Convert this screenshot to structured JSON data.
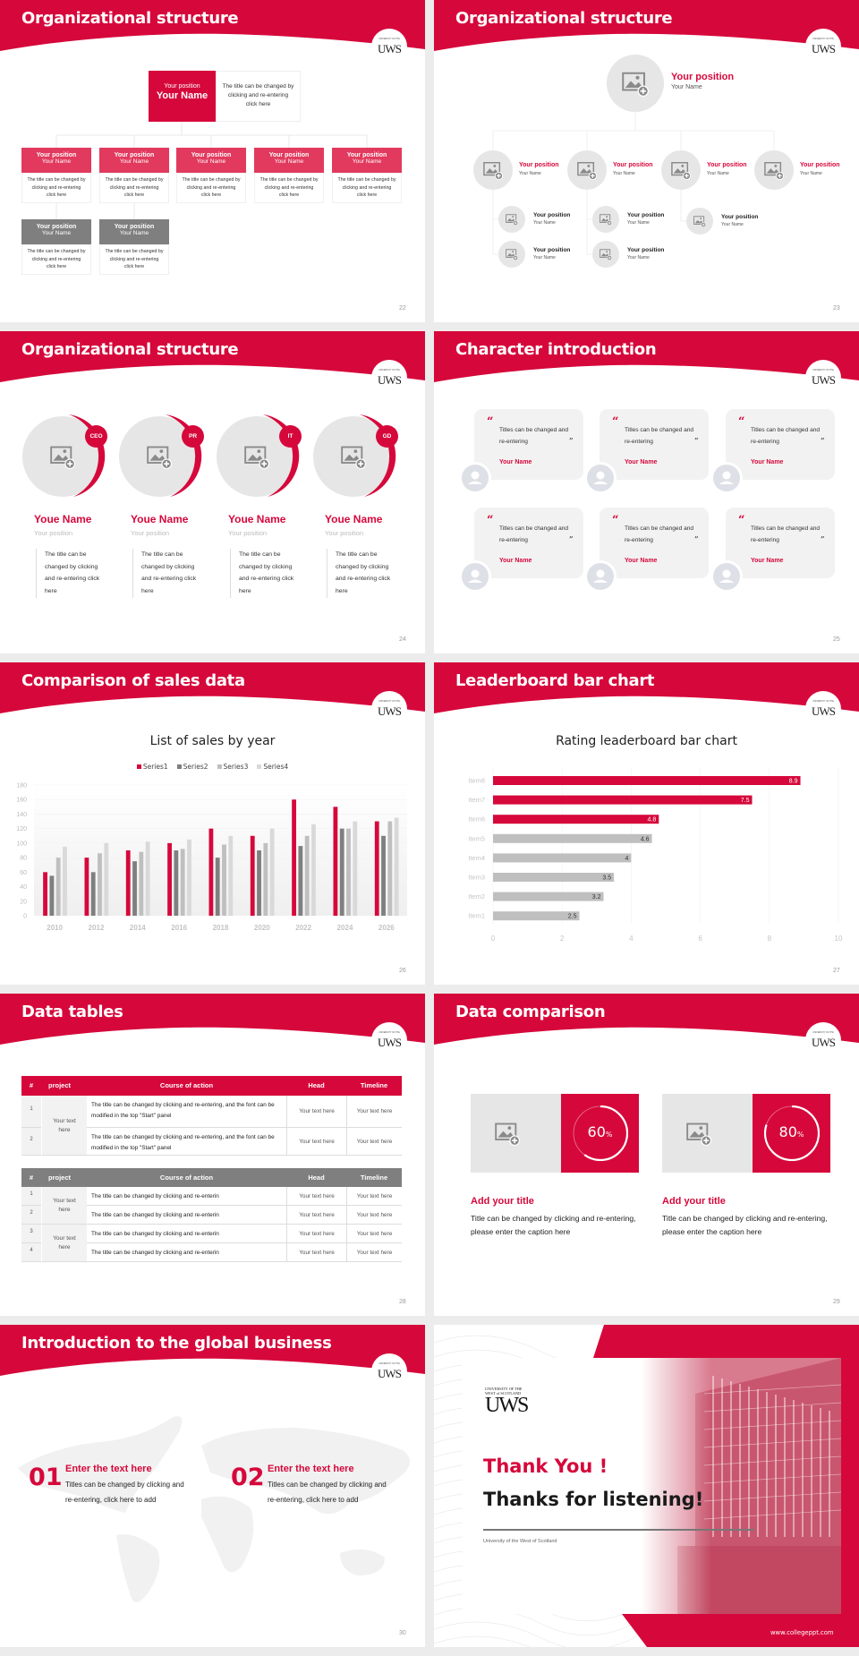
{
  "brand": {
    "red": "#d6083b",
    "dark_grey": "#7f7f7f",
    "mid_grey": "#bfbfbf",
    "light_grey": "#e6e6e6"
  },
  "logo": {
    "line1": "UNIVERSITY OF THE",
    "line2": "WEST of SCOTLAND",
    "mark": "UWS"
  },
  "slides": [
    {
      "title": "Organizational structure",
      "page": "22",
      "top": {
        "position": "Your position",
        "name": "Your Name",
        "desc": "The title can be changed by clicking and re-entering click here"
      },
      "boxes": [
        {
          "position": "Your position",
          "name": "Your Name",
          "desc": "The title can be changed by clicking and re-entering click here"
        },
        {
          "position": "Your position",
          "name": "Your Name",
          "desc": "The title can be changed by clicking and re-entering click here"
        },
        {
          "position": "Your position",
          "name": "Your Name",
          "desc": "The title can be changed by clicking and re-entering click here"
        },
        {
          "position": "Your position",
          "name": "Your Name",
          "desc": "The title can be changed by clicking and re-entering click here"
        },
        {
          "position": "Your position",
          "name": "Your Name",
          "desc": "The title can be changed by clicking and re-entering click here"
        }
      ],
      "grey_boxes": [
        {
          "position": "Your position",
          "name": "Your Name",
          "desc": "The title can be changed by clicking and re-entering click here"
        },
        {
          "position": "Your position",
          "name": "Your Name",
          "desc": "The title can be changed by clicking and re-entering click here"
        }
      ]
    },
    {
      "title": "Organizational structure",
      "page": "23",
      "top": {
        "position": "Your position",
        "name": "Your Name"
      },
      "level1": [
        {
          "position": "Your position",
          "name": "Your Name"
        },
        {
          "position": "Your position",
          "name": "Your Name"
        },
        {
          "position": "Your position",
          "name": "Your Name"
        },
        {
          "position": "Your position",
          "name": "Your Name"
        }
      ],
      "level2": [
        {
          "position": "Your position",
          "name": "Your Name"
        },
        {
          "position": "Your position",
          "name": "Your Name"
        },
        {
          "position": "Your position",
          "name": "Your Name"
        },
        {
          "position": "Your position",
          "name": "Your Name"
        },
        {
          "position": "Your position",
          "name": "Your Name"
        }
      ]
    },
    {
      "title": "Organizational structure",
      "page": "24",
      "members": [
        {
          "badge": "CEO",
          "name": "Youe Name",
          "position": "Your position",
          "desc": "The title can be changed by clicking and re-entering click here"
        },
        {
          "badge": "PR",
          "name": "Youe Name",
          "position": "Your position",
          "desc": "The title can be changed by clicking and re-entering click here"
        },
        {
          "badge": "IT",
          "name": "Youe Name",
          "position": "Your position",
          "desc": "The title can be changed by clicking and re-entering click here"
        },
        {
          "badge": "GD",
          "name": "Youe Name",
          "position": "Your position",
          "desc": "The title can be changed by clicking and re-entering click here"
        }
      ]
    },
    {
      "title": "Character introduction",
      "page": "25",
      "cards": [
        {
          "quote": "Titles can be changed and re-entering",
          "name": "Your Name"
        },
        {
          "quote": "Titles can be changed and re-entering",
          "name": "Your Name"
        },
        {
          "quote": "Titles can be changed and re-entering",
          "name": "Your Name"
        },
        {
          "quote": "Titles can be changed and re-entering",
          "name": "Your Name"
        },
        {
          "quote": "Titles can be changed and re-entering",
          "name": "Your Name"
        },
        {
          "quote": "Titles can be changed and re-entering",
          "name": "Your Name"
        }
      ]
    },
    {
      "title": "Comparison of sales data",
      "page": "26"
    },
    {
      "title": "Leaderboard bar chart",
      "page": "27"
    },
    {
      "title": "Data tables",
      "page": "28",
      "table1": {
        "headers": [
          "#",
          "project",
          "Course of action",
          "Head",
          "Timeline"
        ],
        "project": "Your text here",
        "rows": [
          {
            "num": "1",
            "course": "The title can be changed by clicking and re-entering, and the font can be modified in the top \"Start\" panel",
            "head": "Your text here",
            "timeline": "Your text here"
          },
          {
            "num": "2",
            "course": "The title can be changed by clicking and re-entering, and the font can be modified in the top \"Start\" panel",
            "head": "Your text here",
            "timeline": "Your text here"
          }
        ]
      },
      "table2": {
        "headers": [
          "#",
          "project",
          "Course of action",
          "Head",
          "Timeline"
        ],
        "projects": [
          "Your text here",
          "Your text here"
        ],
        "rows": [
          {
            "num": "1",
            "course": "The title can be changed by clicking and re-enterin",
            "head": "Your text here",
            "timeline": "Your text here"
          },
          {
            "num": "2",
            "course": "The title can be changed by clicking and re-enterin",
            "head": "Your text here",
            "timeline": "Your text here"
          },
          {
            "num": "3",
            "course": "The title can be changed by clicking and re-enterin",
            "head": "Your text here",
            "timeline": "Your text here"
          },
          {
            "num": "4",
            "course": "The title can be changed by clicking and re-enterin",
            "head": "Your text here",
            "timeline": "Your text here"
          }
        ]
      }
    },
    {
      "title": "Data comparison",
      "page": "29",
      "items": [
        {
          "percent": 60,
          "value": "60",
          "unit": "%",
          "title": "Add your title",
          "desc": "Title can be changed by clicking and re-entering, please enter the caption here"
        },
        {
          "percent": 80,
          "value": "80",
          "unit": "%",
          "title": "Add your title",
          "desc": "Title can be changed by clicking and re-entering, please enter the caption here"
        }
      ]
    },
    {
      "title": "Introduction to the global business",
      "page": "30",
      "items": [
        {
          "num": "01",
          "title": "Enter the text here",
          "desc": "Titles can be changed by clicking and re-entering, click here to add"
        },
        {
          "num": "02",
          "title": "Enter the text here",
          "desc": "Titles can be changed by clicking and re-entering, click here to add"
        }
      ]
    },
    {
      "thank_you": "Thank You !",
      "thanks": "Thanks for listening!",
      "university": "University of the West of Scotland",
      "website": "www.collegeppt.com"
    }
  ],
  "chart_data": [
    {
      "type": "bar",
      "title": "List of sales by year",
      "categories": [
        "2010",
        "2012",
        "2014",
        "2016",
        "2018",
        "2020",
        "2022",
        "2024",
        "2026"
      ],
      "series": [
        {
          "name": "Series1",
          "color": "#d6083b",
          "values": [
            60,
            80,
            90,
            100,
            120,
            110,
            160,
            150,
            130
          ]
        },
        {
          "name": "Series2",
          "color": "#7f7f7f",
          "values": [
            55,
            60,
            75,
            90,
            80,
            90,
            96,
            120,
            110
          ]
        },
        {
          "name": "Series3",
          "color": "#bfbfbf",
          "values": [
            80,
            86,
            88,
            92,
            98,
            100,
            110,
            120,
            130
          ]
        },
        {
          "name": "Series4",
          "color": "#d9d9d9",
          "values": [
            95,
            100,
            102,
            105,
            110,
            120,
            126,
            130,
            135
          ]
        }
      ],
      "ylim": [
        0,
        180
      ],
      "yticks": [
        "0",
        "20",
        "40",
        "60",
        "80",
        "100",
        "120",
        "140",
        "160",
        "180"
      ],
      "legend": "top",
      "grid": true
    },
    {
      "type": "bar",
      "orientation": "horizontal",
      "title": "Rating leaderboard bar chart",
      "categories": [
        "Item1",
        "Item2",
        "Item3",
        "Item4",
        "Item5",
        "Item6",
        "Item7",
        "Item8"
      ],
      "values": [
        2.5,
        3.2,
        3.5,
        4,
        4.6,
        4.8,
        7.5,
        8.9
      ],
      "labels": [
        "2.5",
        "3.2",
        "3.5",
        "4",
        "4.6",
        "4.8",
        "7.5",
        "8.9"
      ],
      "colors": [
        "#bfbfbf",
        "#bfbfbf",
        "#bfbfbf",
        "#bfbfbf",
        "#bfbfbf",
        "#d6083b",
        "#d6083b",
        "#d6083b"
      ],
      "xlim": [
        0,
        10
      ],
      "xticks": [
        "0",
        "2",
        "4",
        "6",
        "8",
        "10"
      ],
      "grid": true,
      "legend": "none"
    }
  ]
}
